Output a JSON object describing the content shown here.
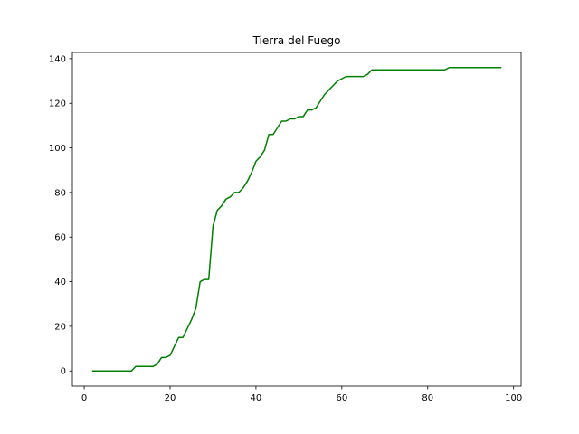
{
  "chart_data": {
    "type": "line",
    "title": "Tierra del Fuego",
    "xlabel": "",
    "ylabel": "",
    "xlim": [
      -2.75,
      101.75
    ],
    "ylim": [
      -6.8,
      142.8
    ],
    "xticks": [
      0,
      20,
      40,
      60,
      80,
      100
    ],
    "yticks": [
      0,
      20,
      40,
      60,
      80,
      100,
      120,
      140
    ],
    "grid": false,
    "legend": "none",
    "series": [
      {
        "color": "#008000",
        "x": [
          2,
          3,
          4,
          5,
          6,
          7,
          8,
          9,
          10,
          11,
          12,
          13,
          14,
          15,
          16,
          17,
          18,
          19,
          20,
          21,
          22,
          23,
          24,
          25,
          26,
          27,
          28,
          29,
          30,
          31,
          32,
          33,
          34,
          35,
          36,
          37,
          38,
          39,
          40,
          41,
          42,
          43,
          44,
          45,
          46,
          47,
          48,
          49,
          50,
          51,
          52,
          53,
          54,
          55,
          56,
          57,
          58,
          59,
          60,
          61,
          62,
          63,
          64,
          65,
          66,
          67,
          68,
          69,
          70,
          71,
          72,
          73,
          74,
          75,
          76,
          77,
          78,
          79,
          80,
          81,
          82,
          83,
          84,
          85,
          86,
          87,
          88,
          89,
          90,
          91,
          92,
          93,
          94,
          95,
          96,
          97
        ],
        "y": [
          0,
          0,
          0,
          0,
          0,
          0,
          0,
          0,
          0,
          0,
          2,
          2,
          2,
          2,
          2,
          3,
          6,
          6,
          7,
          11,
          15,
          15,
          19,
          23,
          28,
          40,
          41,
          41,
          65,
          72,
          74,
          77,
          78,
          80,
          80,
          82,
          85,
          89,
          94,
          96,
          99,
          106,
          106,
          109,
          112,
          112,
          113,
          113,
          114,
          114,
          117,
          117,
          118,
          121,
          124,
          126,
          128,
          130,
          131,
          132,
          132,
          132,
          132,
          132,
          133,
          135,
          135,
          135,
          135,
          135,
          135,
          135,
          135,
          135,
          135,
          135,
          135,
          135,
          135,
          135,
          135,
          135,
          135,
          136,
          136,
          136,
          136,
          136,
          136,
          136,
          136,
          136,
          136,
          136,
          136,
          136
        ]
      }
    ]
  }
}
